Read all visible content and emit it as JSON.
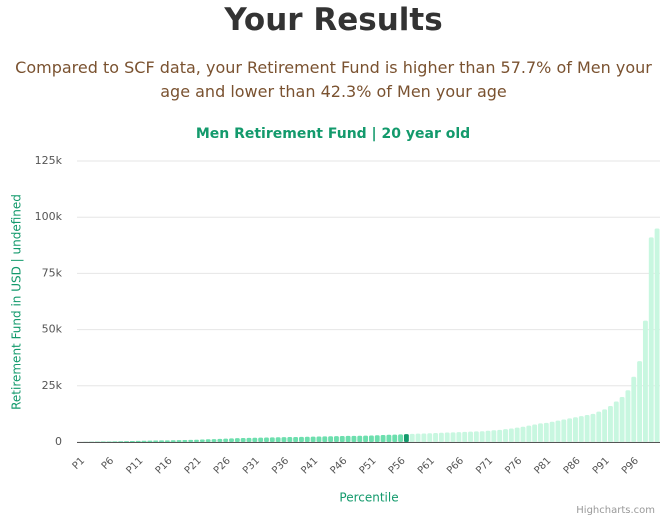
{
  "page": {
    "heading": "Your Results",
    "summary": "Compared to SCF data, your Retirement Fund is higher than 57.7% of Men your age and lower than 42.3% of Men your age",
    "credits": "Highcharts.com"
  },
  "chart_data": {
    "type": "bar",
    "title": "Men Retirement Fund | 20 year old",
    "x_label": "Percentile",
    "y_label": "Retirement Fund in USD | undefined",
    "categories": [
      "P1",
      null,
      null,
      null,
      null,
      "P6",
      null,
      null,
      null,
      null,
      "P11",
      null,
      null,
      null,
      null,
      "P16",
      null,
      null,
      null,
      null,
      "P21",
      null,
      null,
      null,
      null,
      "P26",
      null,
      null,
      null,
      null,
      "P31",
      null,
      null,
      null,
      null,
      "P36",
      null,
      null,
      null,
      null,
      "P41",
      null,
      null,
      null,
      null,
      "P46",
      null,
      null,
      null,
      null,
      "P51",
      null,
      null,
      null,
      null,
      "P56",
      null,
      null,
      null,
      null,
      "P61",
      null,
      null,
      null,
      null,
      "P66",
      null,
      null,
      null,
      null,
      "P71",
      null,
      null,
      null,
      null,
      "P76",
      null,
      null,
      null,
      null,
      "P81",
      null,
      null,
      null,
      null,
      "P86",
      null,
      null,
      null,
      null,
      "P91",
      null,
      null,
      null,
      null,
      "P96",
      null,
      null,
      null,
      null
    ],
    "values": [
      0,
      50,
      100,
      150,
      200,
      250,
      300,
      350,
      400,
      450,
      500,
      550,
      600,
      650,
      700,
      750,
      800,
      850,
      900,
      950,
      1000,
      1100,
      1200,
      1300,
      1400,
      1500,
      1600,
      1700,
      1800,
      1850,
      1900,
      1950,
      2000,
      2050,
      2100,
      2150,
      2200,
      2250,
      2300,
      2350,
      2400,
      2450,
      2500,
      2550,
      2600,
      2650,
      2700,
      2750,
      2800,
      2850,
      2900,
      3000,
      3100,
      3200,
      3300,
      3400,
      3500,
      3600,
      3700,
      3800,
      3900,
      4000,
      4100,
      4200,
      4300,
      4400,
      4500,
      4600,
      4700,
      4800,
      5000,
      5200,
      5400,
      5700,
      6000,
      6400,
      6800,
      7300,
      7800,
      8300,
      8500,
      9000,
      9500,
      10000,
      10500,
      11000,
      11500,
      12000,
      12500,
      13500,
      14500,
      16000,
      18000,
      20000,
      23000,
      29000,
      36000,
      54000,
      91000,
      95000
    ],
    "selected": 56,
    "colors": {
      "below": "#6ddfae",
      "selected": "#139a6c",
      "above": "#c8f7e0"
    },
    "ylim": [
      0,
      125000
    ],
    "yticks": [
      0,
      {
        "value": 25000,
        "label": "25k"
      },
      {
        "value": 50000,
        "label": "50k"
      },
      {
        "value": 75000,
        "label": "75k"
      },
      {
        "value": 100000,
        "label": "100k"
      },
      {
        "value": 125000,
        "label": "125k"
      }
    ],
    "grid": true
  }
}
